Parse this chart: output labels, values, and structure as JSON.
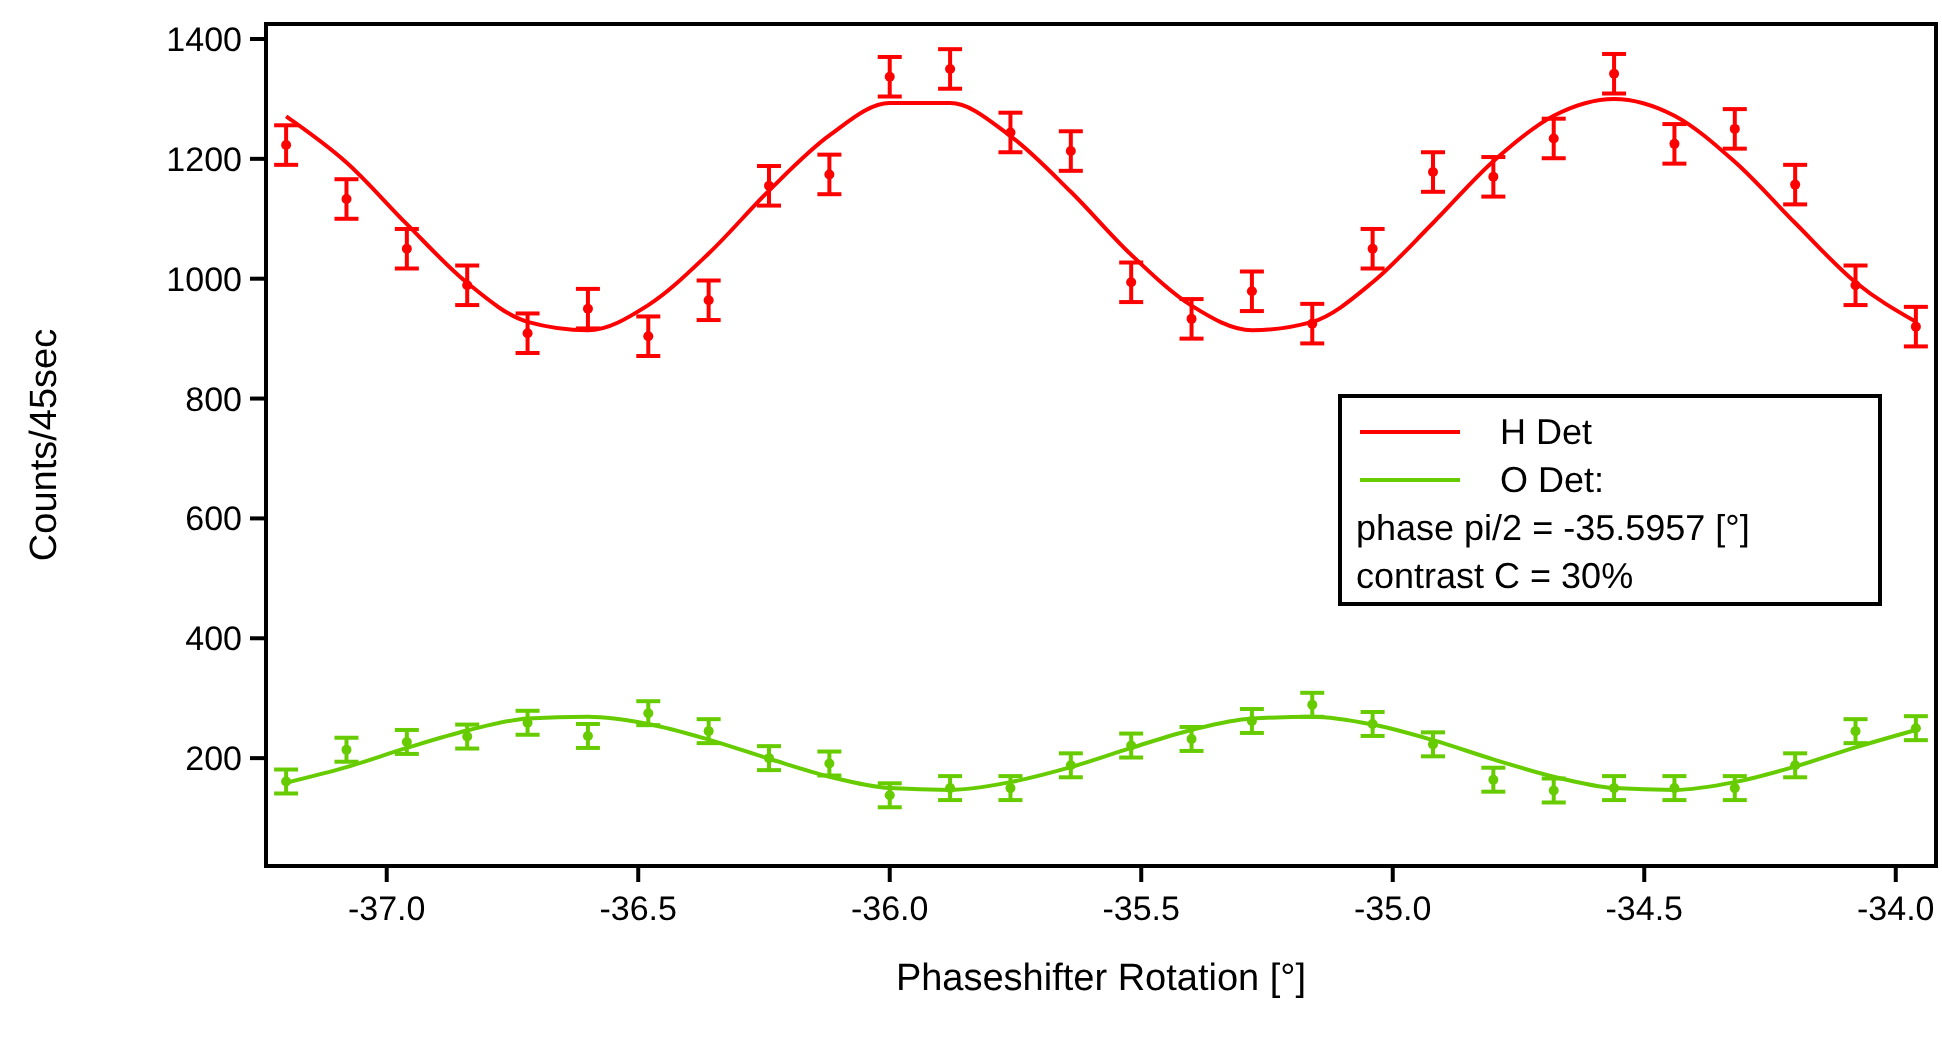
{
  "chart_data": {
    "type": "scatter",
    "xlabel": "Phaseshifter Rotation [°]",
    "ylabel": "Counts/45sec",
    "x": [
      -37.2,
      -37.08,
      -36.96,
      -36.84,
      -36.72,
      -36.6,
      -36.48,
      -36.36,
      -36.24,
      -36.12,
      -36.0,
      -35.88,
      -35.76,
      -35.64,
      -35.52,
      -35.4,
      -35.28,
      -35.16,
      -35.04,
      -34.92,
      -34.8,
      -34.68,
      -34.56,
      -34.44,
      -34.32,
      -34.2,
      -34.08,
      -33.96
    ],
    "series": [
      {
        "color": "#ff0000",
        "marker": "circle",
        "values": [
          1223,
          1133,
          1050,
          989,
          909,
          950,
          904,
          964,
          1155,
          1174,
          1337,
          1350,
          1244,
          1213,
          994,
          933,
          979,
          925,
          1050,
          1178,
          1170,
          1234,
          1342,
          1225,
          1250,
          1157,
          989,
          920
        ],
        "errors": [
          33,
          33,
          33,
          33,
          33,
          33,
          33,
          33,
          33,
          33,
          33,
          33,
          33,
          33,
          33,
          33,
          33,
          33,
          33,
          33,
          33,
          33,
          33,
          33,
          33,
          33,
          33,
          33
        ]
      },
      {
        "color": "#66cc00",
        "marker": "circle",
        "values": [
          161,
          214,
          227,
          236,
          259,
          237,
          275,
          245,
          200,
          191,
          138,
          150,
          150,
          188,
          221,
          232,
          262,
          289,
          257,
          223,
          164,
          146,
          150,
          150,
          150,
          188,
          245,
          250
        ],
        "errors": [
          20,
          20,
          20,
          20,
          20,
          20,
          20,
          20,
          20,
          20,
          20,
          20,
          20,
          20,
          20,
          20,
          20,
          20,
          20,
          20,
          20,
          20,
          20,
          20,
          20,
          20,
          20,
          20
        ]
      },
      {
        "type": "line",
        "name": "H Det",
        "color": "#ff0000",
        "values": [
          1271,
          1194,
          1091,
          993,
          928,
          914,
          956,
          1042,
          1147,
          1239,
          1293,
          1293,
          1238,
          1145,
          1040,
          955,
          914,
          928,
          994,
          1093,
          1196,
          1272,
          1300,
          1272,
          1195,
          1093,
          994,
          928
        ]
      },
      {
        "type": "line",
        "name": "O Det:",
        "color": "#66cc00",
        "values": [
          159,
          185,
          217,
          246,
          266,
          269,
          257,
          231,
          199,
          169,
          150,
          147,
          160,
          185,
          217,
          247,
          266,
          269,
          256,
          230,
          198,
          169,
          150,
          147,
          160,
          186,
          218,
          247
        ]
      }
    ],
    "xlim": [
      -37.24,
      -33.92
    ],
    "xticks": [
      {
        "value": -37,
        "label": "-37.0"
      },
      {
        "value": -36.5,
        "label": "-36.5"
      },
      {
        "value": -36,
        "label": "-36.0"
      },
      {
        "value": -35.5,
        "label": "-35.5"
      },
      {
        "value": -35,
        "label": "-35.0"
      },
      {
        "value": -34.5,
        "label": "-34.5"
      },
      {
        "value": -34,
        "label": "-34.0"
      }
    ],
    "ylim": [
      20,
      1425
    ],
    "yticks": [
      200,
      400,
      600,
      800,
      1000,
      1200,
      1400
    ],
    "legend": "right",
    "grid": false,
    "line_style": "solid",
    "annotations": [
      "phase pi/2 = -35.5957 [°]",
      "contrast C = 30%"
    ]
  }
}
